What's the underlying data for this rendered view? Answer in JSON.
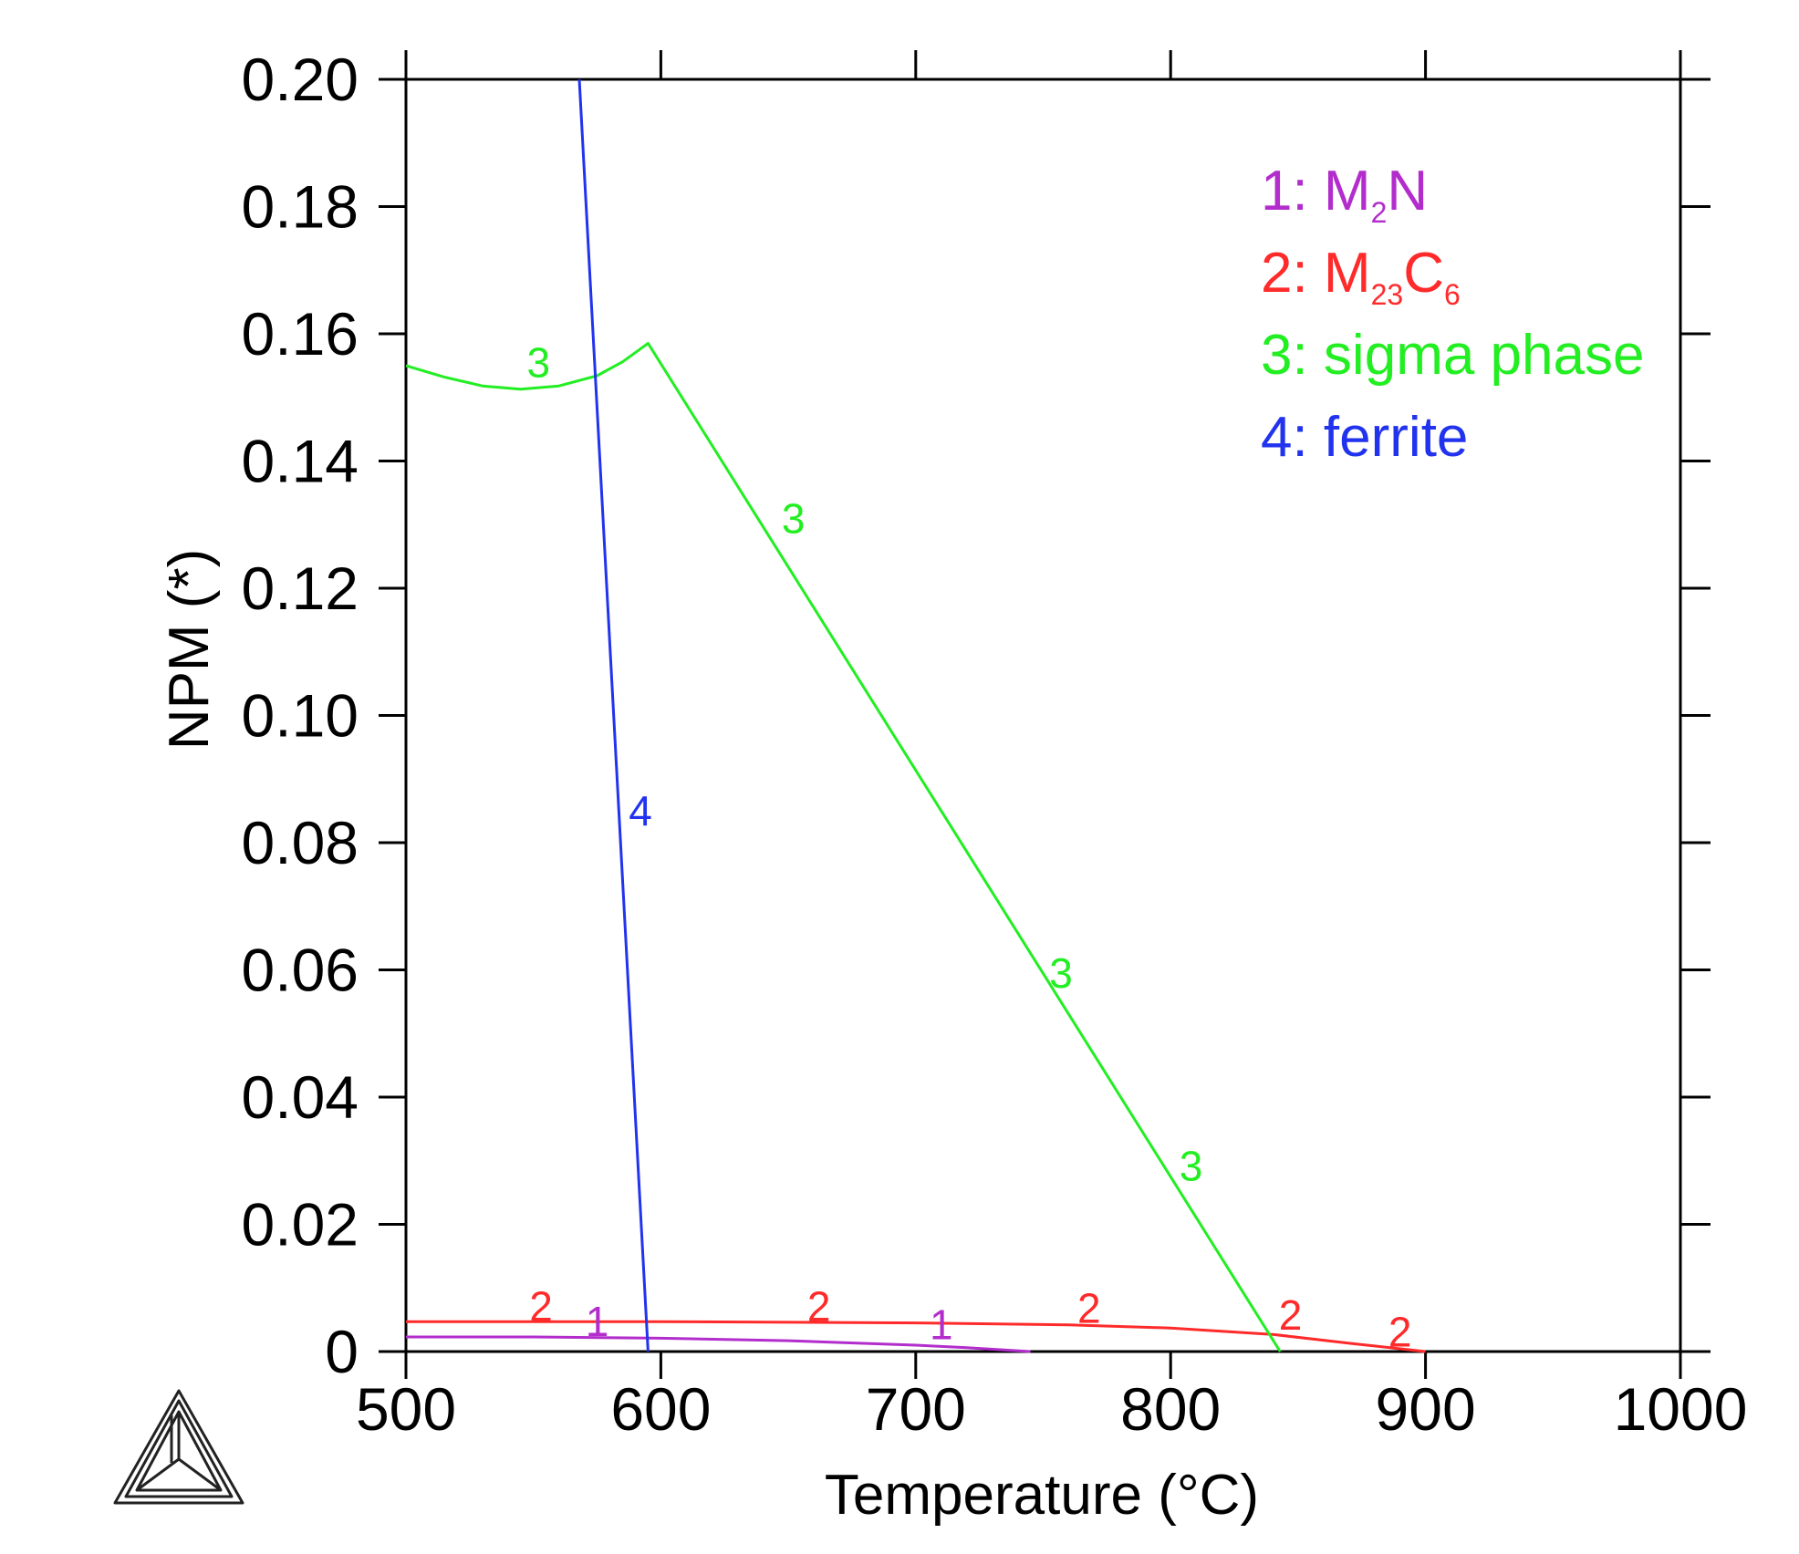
{
  "chart_data": {
    "type": "line",
    "xlabel": "Temperature (°C)",
    "ylabel": "NPM (*)",
    "xlim": [
      500,
      1000
    ],
    "ylim": [
      0,
      0.2
    ],
    "xticks": [
      500,
      600,
      700,
      800,
      900,
      1000
    ],
    "xtick_labels": [
      "500",
      "600",
      "700",
      "800",
      "900",
      "1000"
    ],
    "yticks": [
      0,
      0.02,
      0.04,
      0.06,
      0.08,
      0.1,
      0.12,
      0.14,
      0.16,
      0.18,
      0.2
    ],
    "ytick_labels": [
      "0",
      "0.02",
      "0.04",
      "0.06",
      "0.08",
      "0.10",
      "0.12",
      "0.14",
      "0.16",
      "0.18",
      "0.20"
    ],
    "grid": false,
    "legend_position": "top-right",
    "legend": [
      {
        "id": "1",
        "sep": ": ",
        "name": "M",
        "sub1": "2",
        "name2": "N",
        "sub2": "",
        "color": "#b22dcc"
      },
      {
        "id": "2",
        "sep": ": ",
        "name": "M",
        "sub1": "23",
        "name2": "C",
        "sub2": "6",
        "color": "#ff2a2a"
      },
      {
        "id": "3",
        "sep": ": ",
        "name": "sigma phase",
        "sub1": "",
        "name2": "",
        "sub2": "",
        "color": "#22ee22"
      },
      {
        "id": "4",
        "sep": ": ",
        "name": "ferrite",
        "sub1": "",
        "name2": "",
        "sub2": "",
        "color": "#2233ee"
      }
    ],
    "series": [
      {
        "name": "M2N",
        "label": "1",
        "color": "#b22dcc",
        "x": [
          500,
          550,
          600,
          650,
          700,
          720,
          745
        ],
        "y": [
          0.0023,
          0.0023,
          0.0021,
          0.0017,
          0.001,
          0.0006,
          0.0
        ],
        "label_points": [
          [
            575,
            0.0047
          ],
          [
            710,
            0.0042
          ]
        ]
      },
      {
        "name": "M23C6",
        "label": "2",
        "color": "#ff2a2a",
        "x": [
          500,
          600,
          700,
          760,
          800,
          840,
          870,
          900
        ],
        "y": [
          0.0047,
          0.0047,
          0.0045,
          0.0042,
          0.0037,
          0.0027,
          0.0013,
          0.0
        ],
        "label_points": [
          [
            553,
            0.0071
          ],
          [
            662,
            0.0071
          ],
          [
            768,
            0.0068
          ],
          [
            847,
            0.0057
          ],
          [
            890,
            0.0031
          ]
        ]
      },
      {
        "name": "sigma phase",
        "label": "3",
        "color": "#22ee22",
        "x": [
          500,
          515,
          530,
          545,
          560,
          575,
          585,
          595,
          843
        ],
        "y": [
          0.155,
          0.1532,
          0.1518,
          0.1513,
          0.1518,
          0.1534,
          0.1556,
          0.1585,
          0.0
        ],
        "label_points": [
          [
            552,
            0.1555
          ],
          [
            652,
            0.131
          ],
          [
            757,
            0.0595
          ],
          [
            808,
            0.0292
          ]
        ]
      },
      {
        "name": "ferrite",
        "label": "4",
        "color": "#2233ee",
        "x": [
          568,
          595
        ],
        "y": [
          0.2,
          0.0
        ],
        "label_points": [
          [
            592,
            0.085
          ]
        ]
      }
    ]
  }
}
